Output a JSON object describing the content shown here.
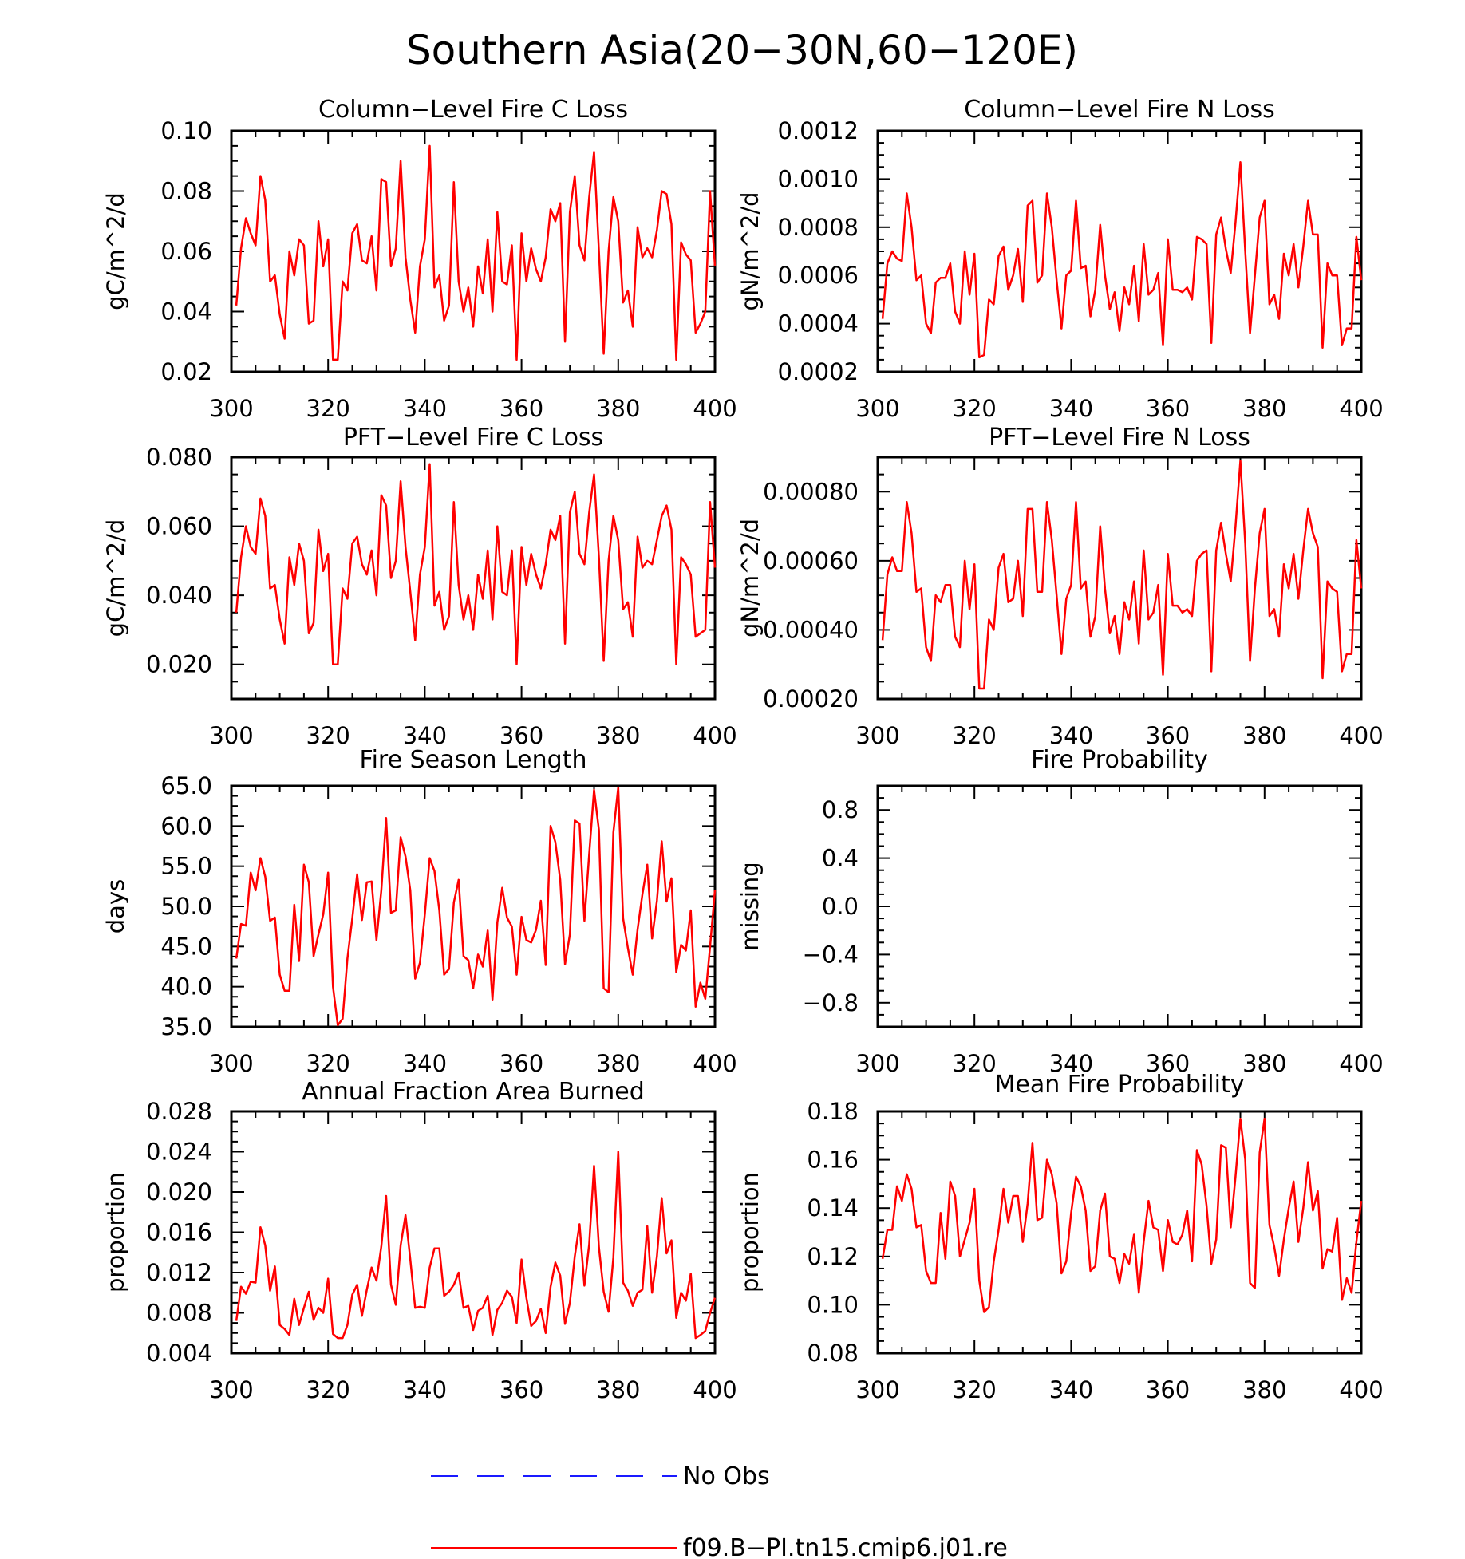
{
  "figure": {
    "title": "Southern Asia(20−30N,60−120E)"
  },
  "legend": {
    "entries": [
      {
        "label": "No Obs",
        "style": "dashed",
        "color": "#1a1aff"
      },
      {
        "label": "f09.B−PI.tn15.cmip6.j01.re",
        "style": "solid",
        "color": "#ff0000"
      }
    ]
  },
  "colors": {
    "series": "#ff0000",
    "axes": "#000000"
  },
  "chart_data": [
    {
      "type": "line",
      "title": "Column−Level Fire C Loss",
      "ylabel": "gC/m^2/d",
      "xlim": [
        300,
        400
      ],
      "ylim": [
        0.02,
        0.1
      ],
      "xticks": [
        "300",
        "320",
        "340",
        "360",
        "380",
        "400"
      ],
      "yticks": [
        "0.02",
        "0.04",
        "0.06",
        "0.08",
        "0.10"
      ],
      "series": [
        {
          "x_start": 301,
          "values": [
            0.042,
            0.061,
            0.071,
            0.066,
            0.062,
            0.085,
            0.077,
            0.05,
            0.052,
            0.039,
            0.031,
            0.06,
            0.052,
            0.064,
            0.062,
            0.036,
            0.037,
            0.07,
            0.055,
            0.064,
            0.024,
            0.024,
            0.05,
            0.047,
            0.066,
            0.069,
            0.057,
            0.056,
            0.065,
            0.047,
            0.084,
            0.083,
            0.055,
            0.061,
            0.09,
            0.058,
            0.044,
            0.033,
            0.055,
            0.064,
            0.095,
            0.048,
            0.052,
            0.037,
            0.042,
            0.083,
            0.05,
            0.04,
            0.048,
            0.035,
            0.055,
            0.046,
            0.064,
            0.04,
            0.073,
            0.05,
            0.049,
            0.062,
            0.024,
            0.066,
            0.05,
            0.061,
            0.054,
            0.05,
            0.058,
            0.074,
            0.07,
            0.076,
            0.03,
            0.073,
            0.085,
            0.062,
            0.057,
            0.078,
            0.093,
            0.06,
            0.026,
            0.06,
            0.078,
            0.07,
            0.043,
            0.047,
            0.035,
            0.068,
            0.058,
            0.061,
            0.058,
            0.067,
            0.08,
            0.079,
            0.069,
            0.024,
            0.063,
            0.059,
            0.057,
            0.033,
            0.036,
            0.04,
            0.08,
            0.055
          ]
        }
      ]
    },
    {
      "type": "line",
      "title": "Column−Level Fire N Loss",
      "ylabel": "gN/m^2/d",
      "xlim": [
        300,
        400
      ],
      "ylim": [
        0.0002,
        0.0012
      ],
      "xticks": [
        "300",
        "320",
        "340",
        "360",
        "380",
        "400"
      ],
      "yticks": [
        "0.0002",
        "0.0004",
        "0.0006",
        "0.0008",
        "0.0010",
        "0.0012"
      ],
      "series": [
        {
          "x_start": 301,
          "values": [
            0.00042,
            0.00065,
            0.0007,
            0.00067,
            0.00066,
            0.00094,
            0.0008,
            0.00058,
            0.0006,
            0.0004,
            0.00036,
            0.00057,
            0.00059,
            0.00059,
            0.00065,
            0.00045,
            0.0004,
            0.0007,
            0.00052,
            0.00069,
            0.00026,
            0.00027,
            0.0005,
            0.00048,
            0.00068,
            0.00072,
            0.00054,
            0.0006,
            0.00071,
            0.00049,
            0.00089,
            0.00091,
            0.00057,
            0.0006,
            0.00094,
            0.0008,
            0.00058,
            0.00038,
            0.0006,
            0.00062,
            0.00091,
            0.00063,
            0.00064,
            0.00043,
            0.00054,
            0.00081,
            0.0006,
            0.00046,
            0.00053,
            0.00037,
            0.00055,
            0.00048,
            0.00064,
            0.00041,
            0.00073,
            0.00052,
            0.00054,
            0.00061,
            0.00031,
            0.00075,
            0.00054,
            0.00054,
            0.00053,
            0.00055,
            0.0005,
            0.00076,
            0.00075,
            0.00073,
            0.00032,
            0.00077,
            0.00084,
            0.00071,
            0.00061,
            0.00082,
            0.00107,
            0.0007,
            0.00036,
            0.0006,
            0.00084,
            0.00091,
            0.00048,
            0.00052,
            0.00042,
            0.00069,
            0.0006,
            0.00073,
            0.00055,
            0.00072,
            0.00091,
            0.00077,
            0.00077,
            0.0003,
            0.00065,
            0.0006,
            0.0006,
            0.00031,
            0.00038,
            0.00038,
            0.00076,
            0.00058
          ]
        }
      ]
    },
    {
      "type": "line",
      "title": "PFT−Level Fire C Loss",
      "ylabel": "gC/m^2/d",
      "xlim": [
        300,
        400
      ],
      "ylim": [
        0.01,
        0.08
      ],
      "xticks": [
        "300",
        "320",
        "340",
        "360",
        "380",
        "400"
      ],
      "yticks": [
        "0.020",
        "0.040",
        "0.060",
        "0.080"
      ],
      "series": [
        {
          "x_start": 301,
          "values": [
            0.035,
            0.051,
            0.06,
            0.054,
            0.052,
            0.068,
            0.063,
            0.042,
            0.043,
            0.033,
            0.026,
            0.051,
            0.043,
            0.055,
            0.05,
            0.029,
            0.032,
            0.059,
            0.047,
            0.052,
            0.02,
            0.02,
            0.042,
            0.039,
            0.055,
            0.057,
            0.049,
            0.046,
            0.053,
            0.04,
            0.069,
            0.066,
            0.045,
            0.05,
            0.073,
            0.054,
            0.041,
            0.027,
            0.046,
            0.054,
            0.078,
            0.037,
            0.041,
            0.03,
            0.034,
            0.067,
            0.043,
            0.033,
            0.04,
            0.03,
            0.046,
            0.039,
            0.053,
            0.033,
            0.06,
            0.041,
            0.04,
            0.053,
            0.02,
            0.054,
            0.043,
            0.052,
            0.046,
            0.042,
            0.049,
            0.059,
            0.056,
            0.063,
            0.026,
            0.064,
            0.07,
            0.052,
            0.049,
            0.064,
            0.075,
            0.051,
            0.021,
            0.05,
            0.063,
            0.056,
            0.036,
            0.038,
            0.028,
            0.057,
            0.048,
            0.05,
            0.049,
            0.056,
            0.063,
            0.066,
            0.059,
            0.02,
            0.051,
            0.049,
            0.046,
            0.028,
            0.029,
            0.03,
            0.067,
            0.048
          ]
        }
      ]
    },
    {
      "type": "line",
      "title": "PFT−Level Fire N Loss",
      "ylabel": "gN/m^2/d",
      "xlim": [
        300,
        400
      ],
      "ylim": [
        0.0002,
        0.0009
      ],
      "xticks": [
        "300",
        "320",
        "340",
        "360",
        "380",
        "400"
      ],
      "yticks": [
        "0.00020",
        "0.00040",
        "0.00060",
        "0.00080"
      ],
      "series": [
        {
          "x_start": 301,
          "values": [
            0.00037,
            0.00056,
            0.00061,
            0.00057,
            0.00057,
            0.00077,
            0.00068,
            0.00051,
            0.00052,
            0.00035,
            0.00031,
            0.0005,
            0.00048,
            0.00053,
            0.00053,
            0.00038,
            0.00035,
            0.0006,
            0.00046,
            0.00059,
            0.00023,
            0.00023,
            0.00043,
            0.0004,
            0.00058,
            0.00062,
            0.00048,
            0.00049,
            0.0006,
            0.00044,
            0.00075,
            0.00075,
            0.00051,
            0.00051,
            0.00077,
            0.00066,
            0.0005,
            0.00033,
            0.00049,
            0.00053,
            0.00077,
            0.00052,
            0.00054,
            0.00038,
            0.00044,
            0.0007,
            0.00052,
            0.00039,
            0.00044,
            0.00033,
            0.00048,
            0.00043,
            0.00054,
            0.00036,
            0.00063,
            0.00043,
            0.00045,
            0.00053,
            0.00027,
            0.00062,
            0.00047,
            0.00047,
            0.00045,
            0.00046,
            0.00044,
            0.0006,
            0.00062,
            0.00063,
            0.00028,
            0.00063,
            0.00071,
            0.00062,
            0.00054,
            0.0007,
            0.00089,
            0.00065,
            0.00031,
            0.00052,
            0.00068,
            0.00075,
            0.00044,
            0.00046,
            0.00038,
            0.00059,
            0.00052,
            0.00062,
            0.00049,
            0.00063,
            0.00075,
            0.00068,
            0.00064,
            0.00026,
            0.00054,
            0.00052,
            0.00051,
            0.00028,
            0.00033,
            0.00033,
            0.00066,
            0.00052
          ]
        }
      ]
    },
    {
      "type": "line",
      "title": "Fire Season Length",
      "ylabel": "days",
      "xlim": [
        300,
        400
      ],
      "ylim": [
        35.0,
        65.0
      ],
      "xticks": [
        "300",
        "320",
        "340",
        "360",
        "380",
        "400"
      ],
      "yticks": [
        "35.0",
        "40.0",
        "45.0",
        "50.0",
        "55.0",
        "60.0",
        "65.0"
      ],
      "series": [
        {
          "x_start": 301,
          "values": [
            43.5,
            47.8,
            47.6,
            54.2,
            52.0,
            56.0,
            53.7,
            48.2,
            48.6,
            41.5,
            39.5,
            39.5,
            50.2,
            43.2,
            55.2,
            53.0,
            43.8,
            46.5,
            49.0,
            54.2,
            40.0,
            35.2,
            36.0,
            43.5,
            48.5,
            54.0,
            48.3,
            53.0,
            53.1,
            45.8,
            52.0,
            61.0,
            49.2,
            49.5,
            58.6,
            56.2,
            52.0,
            41.0,
            43.0,
            49.0,
            56.0,
            54.4,
            49.5,
            41.5,
            42.2,
            50.5,
            53.3,
            43.8,
            43.3,
            39.8,
            44.0,
            42.5,
            47.0,
            38.4,
            48.0,
            52.3,
            48.6,
            47.5,
            41.5,
            48.7,
            45.8,
            45.5,
            47.1,
            50.7,
            42.7,
            60.0,
            58.0,
            53.3,
            42.8,
            46.5,
            60.7,
            60.3,
            48.2,
            56.5,
            64.5,
            59.5,
            39.8,
            39.3,
            59.2,
            64.8,
            48.5,
            44.8,
            41.5,
            47.1,
            51.5,
            55.2,
            46.0,
            50.7,
            58.1,
            50.6,
            53.5,
            41.8,
            45.2,
            44.5,
            49.5,
            37.5,
            40.5,
            38.5,
            45.0,
            52.0
          ]
        }
      ]
    },
    {
      "type": "line",
      "title": "Fire Probability",
      "ylabel": "missing",
      "xlim": [
        300,
        400
      ],
      "ylim": [
        -1.0,
        1.0
      ],
      "xticks": [
        "300",
        "320",
        "340",
        "360",
        "380",
        "400"
      ],
      "yticks": [
        "−0.8",
        "−0.4",
        "0.0",
        "0.4",
        "0.8"
      ],
      "series": []
    },
    {
      "type": "line",
      "title": "Annual Fraction Area Burned",
      "ylabel": "proportion",
      "xlim": [
        300,
        400
      ],
      "ylim": [
        0.004,
        0.028
      ],
      "xticks": [
        "300",
        "320",
        "340",
        "360",
        "380",
        "400"
      ],
      "yticks": [
        "0.004",
        "0.008",
        "0.012",
        "0.016",
        "0.020",
        "0.024",
        "0.028"
      ],
      "series": [
        {
          "x_start": 301,
          "values": [
            0.0072,
            0.0106,
            0.0099,
            0.0111,
            0.011,
            0.0165,
            0.0147,
            0.0102,
            0.0126,
            0.0068,
            0.0064,
            0.0058,
            0.0094,
            0.0068,
            0.0085,
            0.0101,
            0.0073,
            0.0085,
            0.008,
            0.0114,
            0.0059,
            0.0055,
            0.0055,
            0.0068,
            0.0098,
            0.0108,
            0.0077,
            0.0103,
            0.0125,
            0.0112,
            0.0146,
            0.0196,
            0.0108,
            0.0088,
            0.0147,
            0.0177,
            0.0133,
            0.0085,
            0.0086,
            0.0085,
            0.0125,
            0.0144,
            0.0144,
            0.0097,
            0.0101,
            0.0108,
            0.012,
            0.0085,
            0.0087,
            0.0063,
            0.0082,
            0.0085,
            0.0097,
            0.0058,
            0.0083,
            0.009,
            0.0102,
            0.0096,
            0.007,
            0.0133,
            0.0095,
            0.0067,
            0.0072,
            0.0084,
            0.006,
            0.0106,
            0.013,
            0.0117,
            0.0069,
            0.009,
            0.0136,
            0.0168,
            0.0107,
            0.0148,
            0.0226,
            0.0145,
            0.0101,
            0.0081,
            0.0135,
            0.024,
            0.011,
            0.0102,
            0.0087,
            0.01,
            0.0103,
            0.0166,
            0.01,
            0.0136,
            0.0194,
            0.0139,
            0.0152,
            0.0075,
            0.01,
            0.0092,
            0.0119,
            0.0055,
            0.0058,
            0.0062,
            0.008,
            0.0095
          ]
        }
      ]
    },
    {
      "type": "line",
      "title": "Mean Fire Probability",
      "ylabel": "proportion",
      "xlim": [
        300,
        400
      ],
      "ylim": [
        0.08,
        0.18
      ],
      "xticks": [
        "300",
        "320",
        "340",
        "360",
        "380",
        "400"
      ],
      "yticks": [
        "0.08",
        "0.10",
        "0.12",
        "0.14",
        "0.16",
        "0.18"
      ],
      "series": [
        {
          "x_start": 301,
          "values": [
            0.119,
            0.131,
            0.131,
            0.149,
            0.143,
            0.154,
            0.148,
            0.132,
            0.133,
            0.114,
            0.109,
            0.109,
            0.138,
            0.119,
            0.151,
            0.145,
            0.12,
            0.127,
            0.134,
            0.148,
            0.11,
            0.097,
            0.099,
            0.118,
            0.131,
            0.148,
            0.134,
            0.145,
            0.145,
            0.126,
            0.142,
            0.167,
            0.135,
            0.136,
            0.16,
            0.154,
            0.142,
            0.113,
            0.118,
            0.138,
            0.153,
            0.149,
            0.139,
            0.114,
            0.116,
            0.139,
            0.146,
            0.12,
            0.119,
            0.109,
            0.121,
            0.117,
            0.129,
            0.105,
            0.126,
            0.143,
            0.132,
            0.131,
            0.114,
            0.135,
            0.126,
            0.125,
            0.129,
            0.139,
            0.118,
            0.164,
            0.158,
            0.141,
            0.117,
            0.127,
            0.166,
            0.165,
            0.132,
            0.153,
            0.177,
            0.16,
            0.109,
            0.107,
            0.163,
            0.177,
            0.133,
            0.124,
            0.112,
            0.127,
            0.14,
            0.151,
            0.126,
            0.14,
            0.159,
            0.139,
            0.147,
            0.115,
            0.123,
            0.122,
            0.136,
            0.102,
            0.111,
            0.105,
            0.126,
            0.143
          ]
        }
      ]
    }
  ]
}
